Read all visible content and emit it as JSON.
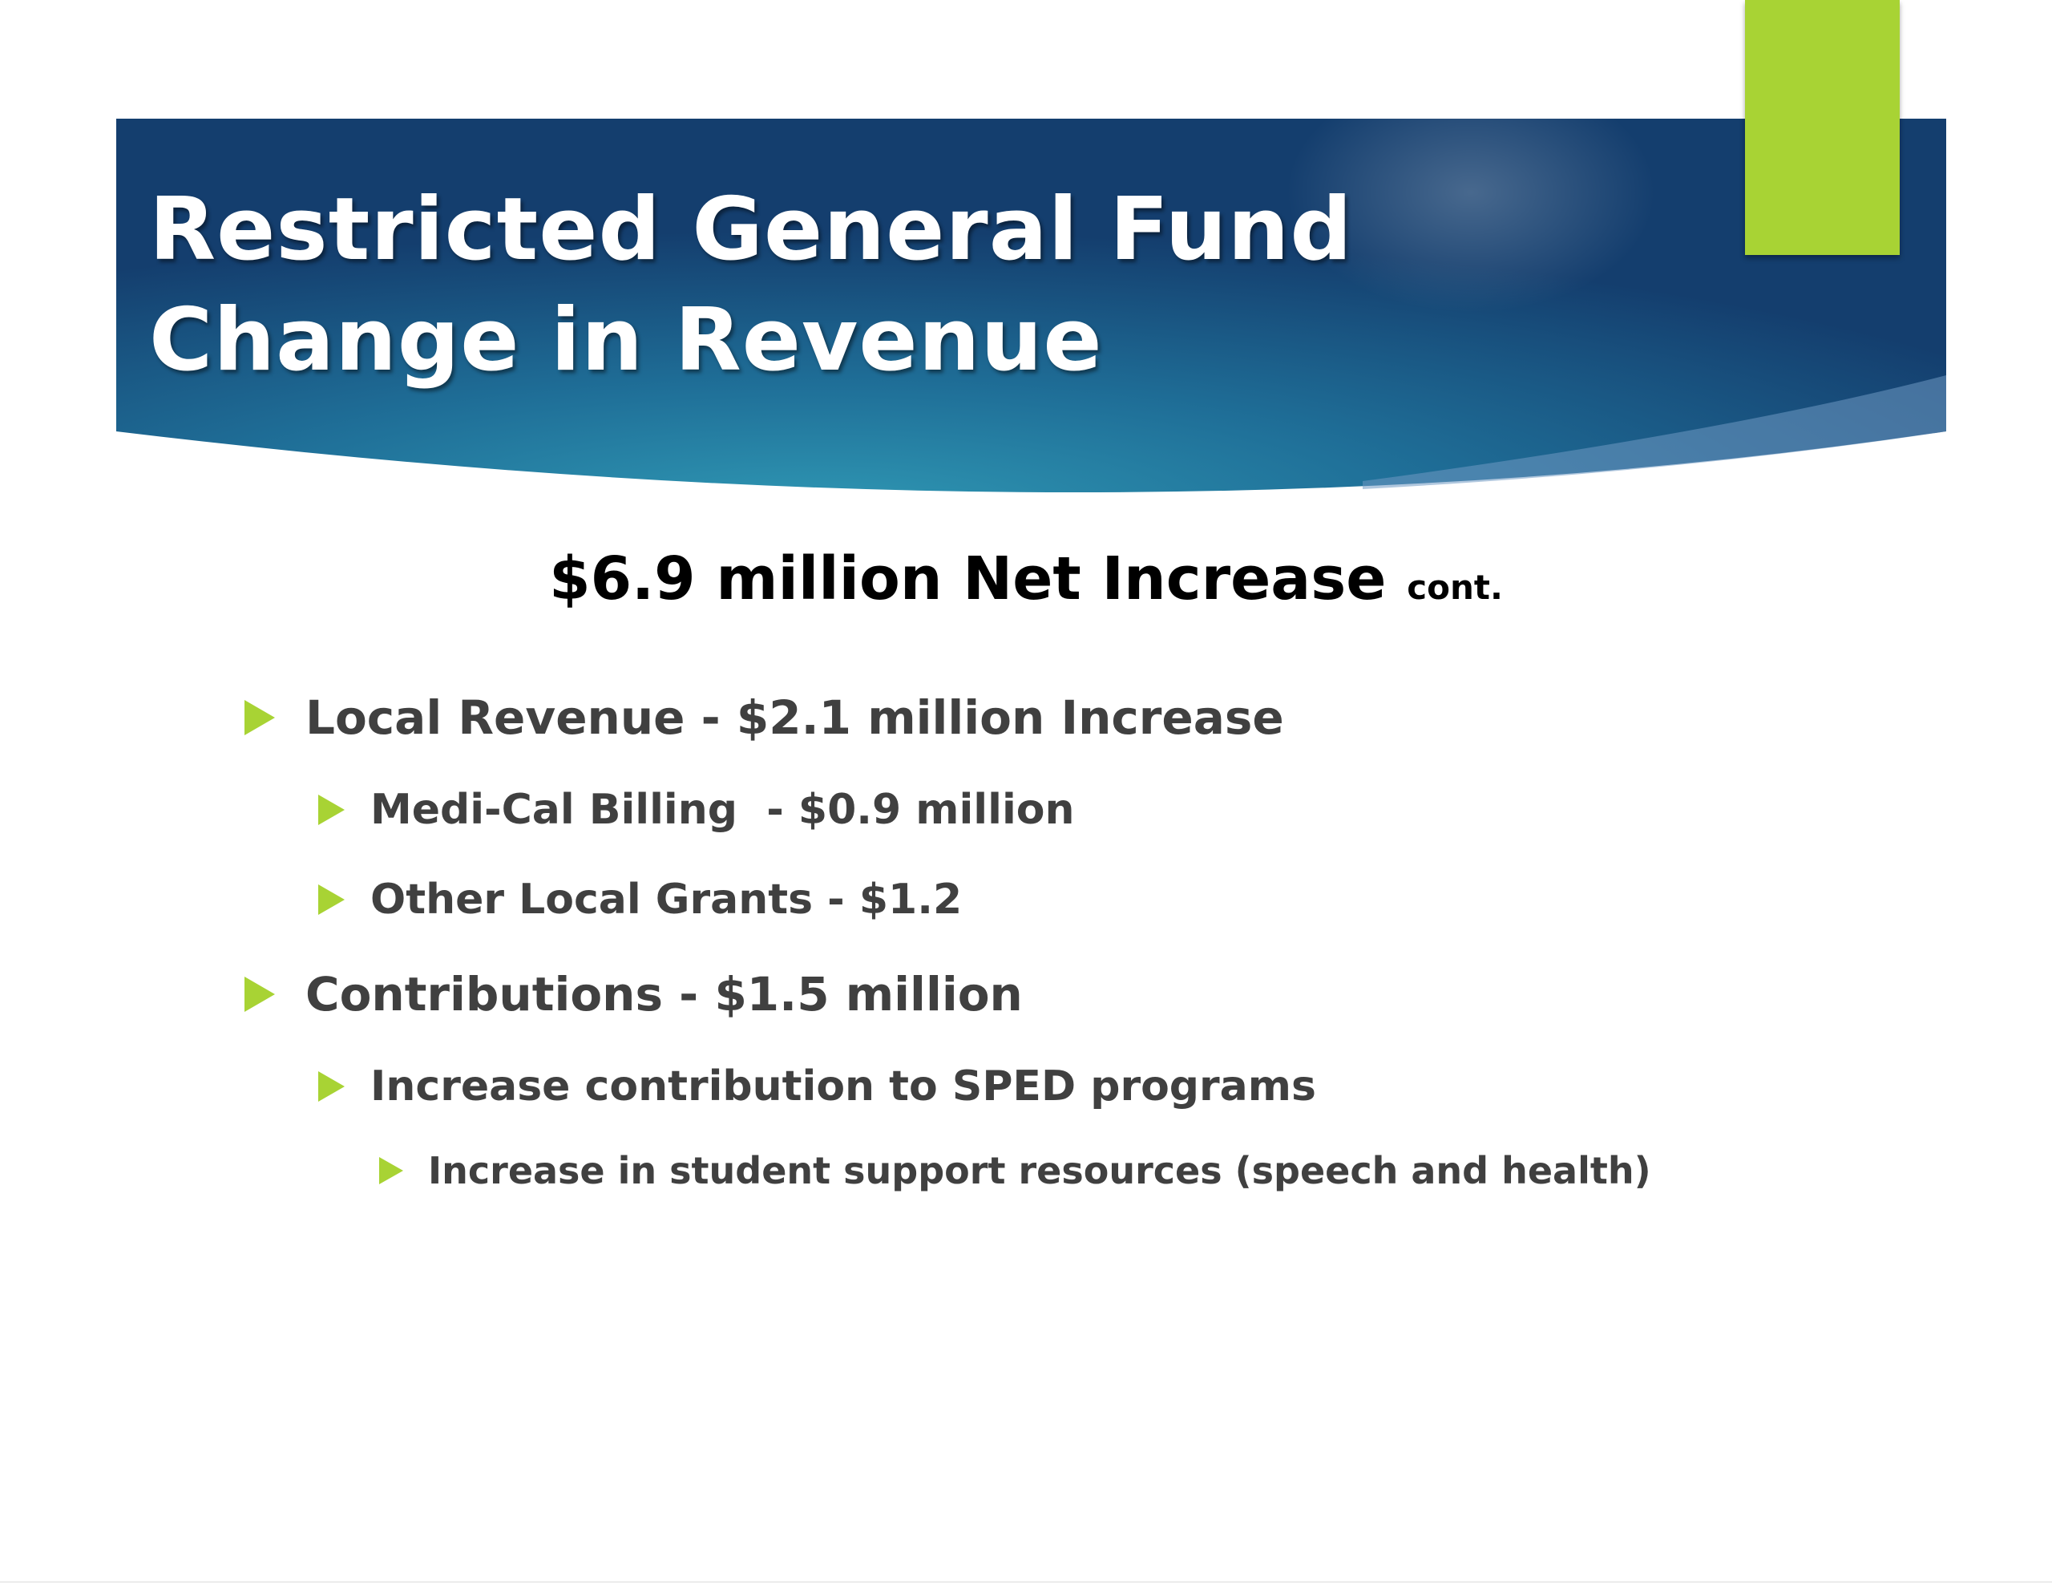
{
  "slide": {
    "title_lines": [
      "Restricted General Fund",
      "Change in Revenue"
    ],
    "subtitle": {
      "main": "$6.9 million Net Increase",
      "suffix": "cont."
    },
    "bullets": [
      {
        "level": 1,
        "text": "Local Revenue - $2.1 million Increase"
      },
      {
        "level": 2,
        "text": "Medi-Cal Billing  - $0.9 million"
      },
      {
        "level": 2,
        "text": "Other Local Grants - $1.2"
      },
      {
        "level": 1,
        "text": "Contributions - $1.5 million"
      },
      {
        "level": 2,
        "text": "Increase contribution to SPED programs"
      },
      {
        "level": 3,
        "text": "Increase in student support resources (speech and health)"
      }
    ]
  },
  "theme": {
    "banner_dark": "#143e6e",
    "banner_light": "#2b8fae",
    "accent_green": "#a8d334",
    "bullet_text": "#404040",
    "subtitle_text": "#000000"
  }
}
